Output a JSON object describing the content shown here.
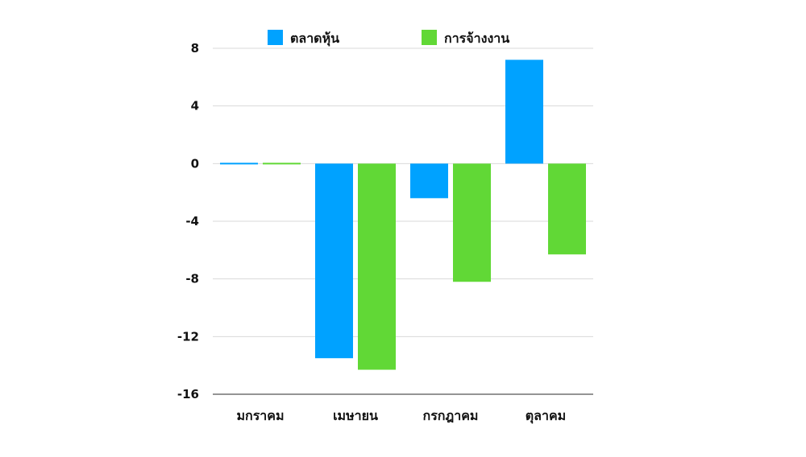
{
  "chart_data": {
    "type": "bar",
    "categories": [
      "มกราคม",
      "เมษายน",
      "กรกฎาคม",
      "ตุลาคม"
    ],
    "series": [
      {
        "name": "ตลาดหุ้น",
        "color": "#00a2ff",
        "values": [
          0.1,
          -13.5,
          -2.4,
          7.2
        ]
      },
      {
        "name": "การจ้างงาน",
        "color": "#61d836",
        "values": [
          0.1,
          -14.3,
          -8.2,
          -6.3
        ]
      }
    ],
    "ylim": [
      -16,
      8
    ],
    "yticks": [
      8,
      4,
      0,
      -4,
      -8,
      -12,
      -16
    ],
    "grid": true,
    "legend_position": "top"
  }
}
